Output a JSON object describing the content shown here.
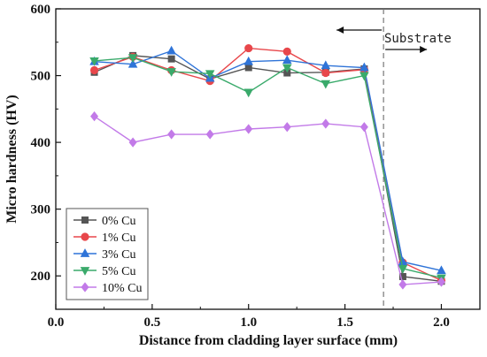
{
  "chart_data": {
    "type": "line",
    "xlabel": "Distance from cladding layer surface (mm)",
    "ylabel": "Micro hardness (HV)",
    "xlim": [
      0.0,
      2.2
    ],
    "ylim": [
      150,
      600
    ],
    "x_ticks": [
      0.0,
      0.5,
      1.0,
      1.5,
      2.0
    ],
    "x_tick_labels": [
      "0.0",
      "0.5",
      "1.0",
      "1.5",
      "2.0"
    ],
    "y_ticks": [
      200,
      300,
      400,
      500,
      600
    ],
    "y_tick_labels": [
      "200",
      "300",
      "400",
      "500",
      "600"
    ],
    "grid": false,
    "legend_position": "bottom-left",
    "series": [
      {
        "name": "0% Cu",
        "color": "#555555",
        "marker": "square",
        "x": [
          0.2,
          0.4,
          0.6,
          0.8,
          1.0,
          1.2,
          1.4,
          1.6,
          1.8,
          2.0
        ],
        "y": [
          505,
          530,
          525,
          495,
          512,
          504,
          505,
          510,
          199,
          192
        ]
      },
      {
        "name": "1% Cu",
        "color": "#e8474b",
        "marker": "circle",
        "x": [
          0.2,
          0.4,
          0.6,
          0.8,
          1.0,
          1.2,
          1.4,
          1.6,
          1.8,
          2.0
        ],
        "y": [
          508,
          528,
          508,
          492,
          541,
          536,
          504,
          509,
          220,
          193
        ]
      },
      {
        "name": "3% Cu",
        "color": "#2f74d8",
        "marker": "triangle-up",
        "x": [
          0.2,
          0.4,
          0.6,
          0.8,
          1.0,
          1.2,
          1.4,
          1.6,
          1.8,
          2.0
        ],
        "y": [
          521,
          517,
          537,
          496,
          521,
          523,
          515,
          512,
          221,
          208
        ]
      },
      {
        "name": "5% Cu",
        "color": "#3aaa6b",
        "marker": "triangle-down",
        "x": [
          0.2,
          0.4,
          0.6,
          0.8,
          1.0,
          1.2,
          1.4,
          1.6,
          1.8,
          2.0
        ],
        "y": [
          522,
          527,
          506,
          503,
          475,
          512,
          488,
          500,
          211,
          197
        ]
      },
      {
        "name": "10% Cu",
        "color": "#c27ae8",
        "marker": "diamond",
        "x": [
          0.2,
          0.4,
          0.6,
          0.8,
          1.0,
          1.2,
          1.4,
          1.6,
          1.8,
          2.0
        ],
        "y": [
          439,
          400,
          412,
          412,
          420,
          423,
          428,
          423,
          187,
          191
        ]
      }
    ],
    "annotations": {
      "substrate_label": "Substrate",
      "boundary_x": 1.7
    }
  }
}
